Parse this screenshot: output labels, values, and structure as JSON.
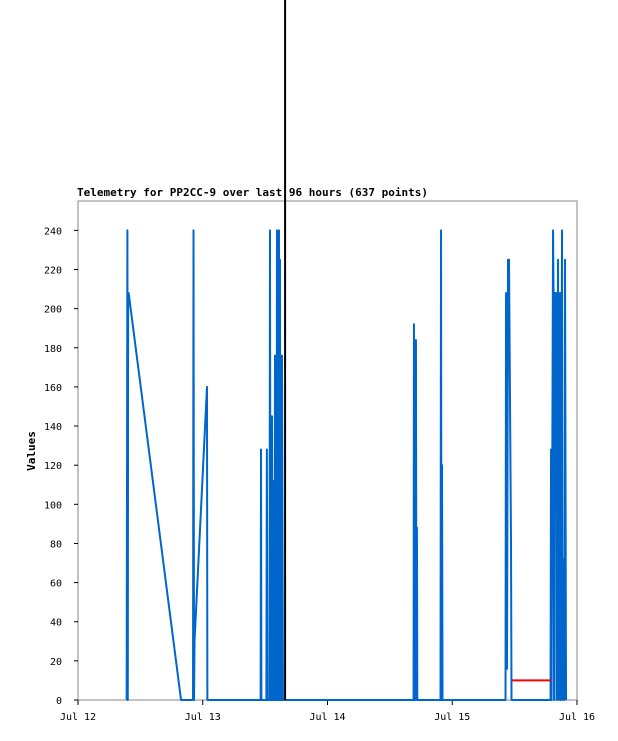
{
  "chart_data": {
    "type": "line",
    "title": "Telemetry for PP2CC-9 over last 96 hours (637 points)",
    "y_label": "Values",
    "xlim": [
      0,
      4
    ],
    "xticks": [
      {
        "value": 0,
        "label": "Jul 12"
      },
      {
        "value": 1,
        "label": "Jul 13"
      },
      {
        "value": 2,
        "label": "Jul 14"
      },
      {
        "value": 3,
        "label": "Jul 15"
      },
      {
        "value": 4,
        "label": "Jul 16"
      }
    ],
    "ylim": [
      0,
      255
    ],
    "yticks": [
      0,
      20,
      40,
      60,
      80,
      100,
      120,
      140,
      160,
      180,
      200,
      220,
      240
    ],
    "grid": false,
    "vline_x": 1.66,
    "vline_color": "#000000",
    "series": [
      {
        "color": "#0066cc",
        "x": [
          0.39,
          0.393,
          0.396,
          0.399,
          0.402,
          0.406,
          0.826,
          0.922,
          0.926,
          0.93,
          0.934,
          1.034,
          1.037,
          1.464,
          1.467,
          1.47,
          1.51,
          1.514,
          1.518,
          1.535,
          1.539,
          1.543,
          1.551,
          1.555,
          1.559,
          1.567,
          1.571,
          1.575,
          1.579,
          1.583,
          1.591,
          1.595,
          1.599,
          1.607,
          1.611,
          1.615,
          1.619,
          1.623,
          1.631,
          1.635,
          1.643,
          2.69,
          2.693,
          2.701,
          2.709,
          2.713,
          2.717,
          2.72,
          2.906,
          2.91,
          2.914,
          2.918,
          2.922,
          3.427,
          3.431,
          3.435,
          3.439,
          3.447,
          3.455,
          3.471,
          3.475,
          3.788,
          3.792,
          3.796,
          3.808,
          3.812,
          3.816,
          3.82,
          3.832,
          3.836,
          3.848,
          3.852,
          3.864,
          3.868,
          3.88,
          3.884,
          3.896,
          3.9,
          3.904,
          3.912
        ],
        "values": [
          0,
          120,
          240,
          0,
          208,
          208,
          0,
          0,
          240,
          0,
          30,
          160,
          0,
          0,
          128,
          0,
          0,
          128,
          0,
          0,
          240,
          0,
          0,
          145,
          0,
          0,
          112,
          0,
          176,
          0,
          0,
          240,
          0,
          0,
          240,
          0,
          225,
          0,
          0,
          176,
          0,
          0,
          192,
          0,
          184,
          0,
          88,
          0,
          0,
          240,
          0,
          120,
          0,
          0,
          208,
          16,
          16,
          225,
          225,
          80,
          0,
          0,
          128,
          0,
          240,
          208,
          0,
          208,
          208,
          0,
          225,
          0,
          208,
          0,
          240,
          0,
          72,
          0,
          225,
          0
        ]
      },
      {
        "color": "#ff0000",
        "x": [
          3.479,
          3.792
        ],
        "values": [
          10,
          10
        ]
      }
    ]
  }
}
